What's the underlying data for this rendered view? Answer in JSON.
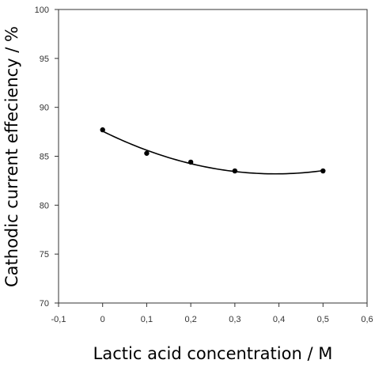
{
  "chart_data": {
    "type": "scatter",
    "xlabel": "Lactic acid concentration / M",
    "ylabel": "Cathodic current effeciency / %",
    "xlim": [
      -0.1,
      0.6
    ],
    "ylim": [
      70,
      100
    ],
    "x_ticks": [
      -0.1,
      0,
      0.1,
      0.2,
      0.3,
      0.4,
      0.5,
      0.6
    ],
    "x_tick_labels": [
      "-0,1",
      "0",
      "0,1",
      "0,2",
      "0,3",
      "0,4",
      "0,5",
      "0,6"
    ],
    "y_ticks": [
      70,
      75,
      80,
      85,
      90,
      95,
      100
    ],
    "y_tick_labels": [
      "70",
      "75",
      "80",
      "85",
      "90",
      "95",
      "100"
    ],
    "grid": false,
    "legend": "none",
    "series": [
      {
        "x": [
          0,
          0.1,
          0.2,
          0.3,
          0.5
        ],
        "y": [
          87.7,
          85.3,
          84.4,
          83.5,
          83.5
        ]
      }
    ],
    "trendline": {
      "type": "polynomial",
      "degree": 2,
      "x_range": [
        0,
        0.5
      ]
    },
    "colors": {
      "marker": "#000000",
      "line": "#000000",
      "axis": "#333333"
    }
  }
}
